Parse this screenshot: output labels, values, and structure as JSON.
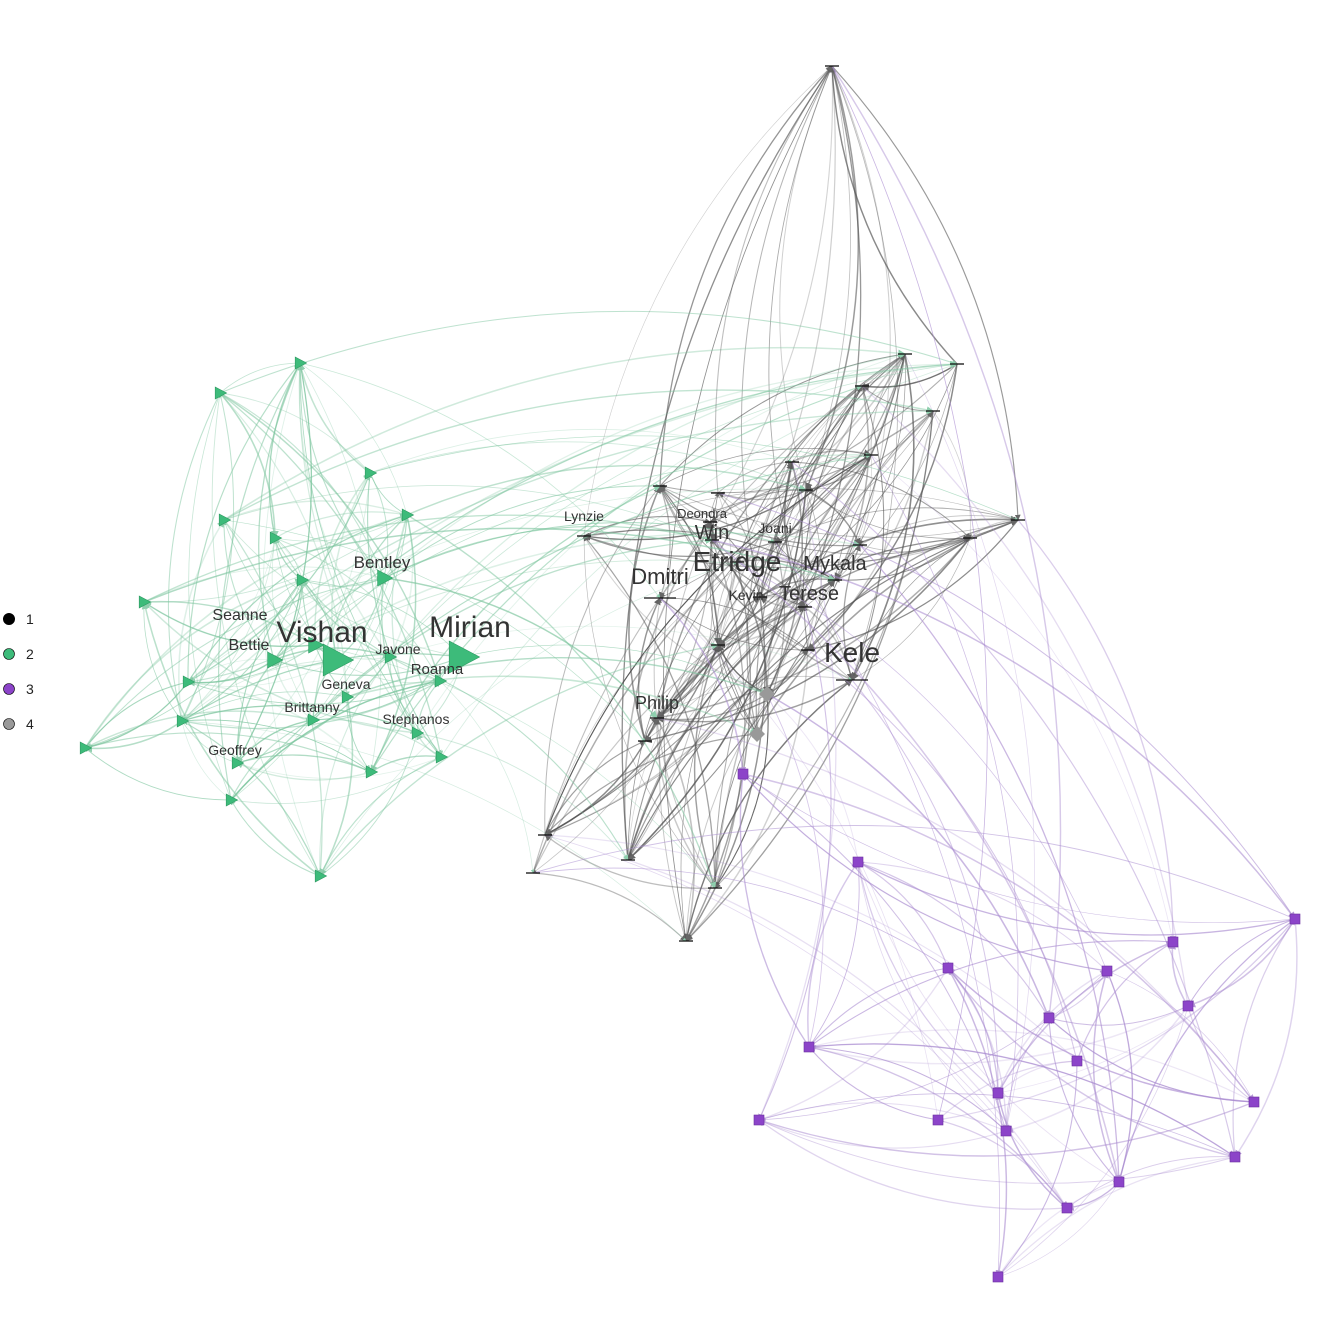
{
  "legend": {
    "items": [
      {
        "label": "1",
        "color": "#000000"
      },
      {
        "label": "2",
        "color": "#3dbb7a"
      },
      {
        "label": "3",
        "color": "#8c44c9"
      },
      {
        "label": "4",
        "color": "#999999"
      }
    ]
  },
  "group_colors": {
    "2": "#3dbb7a",
    "3": "#8c44c9",
    "4": "#666666",
    "4_diamond": "#999999"
  },
  "group_shapes": {
    "2": "triangle",
    "3": "square",
    "4": "dash"
  },
  "nodes": [
    {
      "label": "",
      "group": 2
    },
    {
      "label": "",
      "group": 2
    },
    {
      "label": "",
      "group": 2
    },
    {
      "label": "",
      "group": 2
    },
    {
      "label": "",
      "group": 2
    },
    {
      "label": "",
      "group": 2
    },
    {
      "label": "",
      "group": 2
    },
    {
      "label": "Bentley",
      "group": 2
    },
    {
      "label": "",
      "group": 2
    },
    {
      "label": "Seanne",
      "group": 2
    },
    {
      "label": "Vishan",
      "group": 2
    },
    {
      "label": "Bettie",
      "group": 2
    },
    {
      "label": "Javone",
      "group": 2
    },
    {
      "label": "Mirian",
      "group": 2
    },
    {
      "label": "Roanna",
      "group": 2
    },
    {
      "label": "Geneva",
      "group": 2
    },
    {
      "label": "",
      "group": 2
    },
    {
      "label": "Brittanny",
      "group": 2
    },
    {
      "label": "",
      "group": 2
    },
    {
      "label": "Stephanos",
      "group": 2
    },
    {
      "label": "",
      "group": 2
    },
    {
      "label": "Geoffrey",
      "group": 2
    },
    {
      "label": "",
      "group": 2
    },
    {
      "label": "",
      "group": 2
    },
    {
      "label": "",
      "group": 2
    },
    {
      "label": "",
      "group": 2
    },
    {
      "label": "",
      "group": 4
    },
    {
      "label": "",
      "group": 4
    },
    {
      "label": "",
      "group": 4
    },
    {
      "label": "",
      "group": 4
    },
    {
      "label": "",
      "group": 4
    },
    {
      "label": "",
      "group": 4
    },
    {
      "label": "",
      "group": 4
    },
    {
      "label": "",
      "group": 4
    },
    {
      "label": "",
      "group": 4
    },
    {
      "label": "",
      "group": 4
    },
    {
      "label": "",
      "group": 4
    },
    {
      "label": "",
      "group": 4
    },
    {
      "label": "Lynzie",
      "group": 4
    },
    {
      "label": "Deondra",
      "group": 4
    },
    {
      "label": "Win",
      "group": 4
    },
    {
      "label": "Joani",
      "group": 4
    },
    {
      "label": "Etridge",
      "group": 4
    },
    {
      "label": "",
      "group": 4
    },
    {
      "label": "Mykala",
      "group": 4
    },
    {
      "label": "Dmitri",
      "group": 4
    },
    {
      "label": "Kevin",
      "group": 4
    },
    {
      "label": "Terese",
      "group": 4
    },
    {
      "label": "",
      "group": 4
    },
    {
      "label": "",
      "group": 4
    },
    {
      "label": "Kele",
      "group": 4
    },
    {
      "label": "Philip",
      "group": 4
    },
    {
      "label": "",
      "group": 4
    },
    {
      "label": "",
      "group": 4
    },
    {
      "label": "",
      "group": 4
    },
    {
      "label": "",
      "group": 4
    },
    {
      "label": "",
      "group": 4
    },
    {
      "label": "",
      "group": 4
    },
    {
      "label": "",
      "group": 4,
      "shape": "diamond"
    },
    {
      "label": "",
      "group": 4,
      "shape": "diamond"
    },
    {
      "label": "",
      "group": 3
    },
    {
      "label": "",
      "group": 3
    },
    {
      "label": "",
      "group": 3
    },
    {
      "label": "",
      "group": 3
    },
    {
      "label": "",
      "group": 3
    },
    {
      "label": "",
      "group": 3
    },
    {
      "label": "",
      "group": 3
    },
    {
      "label": "",
      "group": 3
    },
    {
      "label": "",
      "group": 3
    },
    {
      "label": "",
      "group": 3
    },
    {
      "label": "",
      "group": 3
    },
    {
      "label": "",
      "group": 3
    },
    {
      "label": "",
      "group": 3
    },
    {
      "label": "",
      "group": 3
    },
    {
      "label": "",
      "group": 3
    },
    {
      "label": "",
      "group": 3
    },
    {
      "label": "",
      "group": 3
    },
    {
      "label": "",
      "group": 3
    },
    {
      "label": "",
      "group": 3
    }
  ]
}
